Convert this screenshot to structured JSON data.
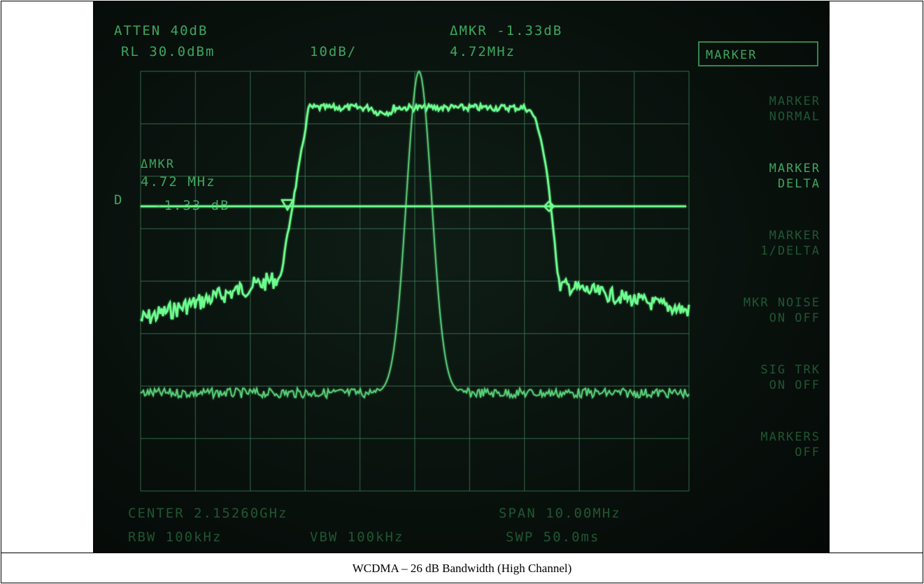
{
  "screen": {
    "atten": "ATTEN 40dB",
    "ref_level": "RL 30.0dBm",
    "scale": "10dB/",
    "delta_marker": "ΔMKR -1.33dB",
    "delta_freq": "4.72MHz",
    "menu_title": "MARKER",
    "menu": [
      [
        "MARKER",
        "NORMAL"
      ],
      [
        "MARKER",
        "DELTA"
      ],
      [
        "MARKER",
        "1/DELTA"
      ],
      [
        "MKR NOISE",
        "ON OFF"
      ],
      [
        "SIG TRK",
        "ON OFF"
      ],
      [
        "MARKERS",
        "OFF"
      ]
    ],
    "marker_readout": [
      "ΔMKR",
      "4.72 MHz",
      "-1.33 dB"
    ],
    "display_line_label": "D",
    "center": "CENTER 2.15260GHz",
    "span": "SPAN 10.00MHz",
    "rbw": "RBW 100kHz",
    "vbw": "VBW 100kHz",
    "sweep": "SWP 50.0ms"
  },
  "caption": "WCDMA – 26 dB Bandwidth (High Channel)"
}
